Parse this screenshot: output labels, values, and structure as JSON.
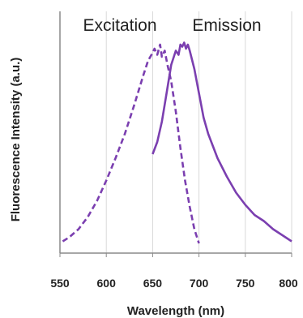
{
  "chart_data": {
    "type": "line",
    "title": "",
    "xlabel": "Wavelength (nm)",
    "ylabel": "Fluorescence Intensity (a.u.)",
    "xlim": [
      550,
      800
    ],
    "ylim": [
      0,
      1
    ],
    "x_ticks": [
      550,
      600,
      650,
      700,
      750,
      800
    ],
    "y_ticks_shown": false,
    "grid": "vertical",
    "legend": "none",
    "series": [
      {
        "name": "Excitation",
        "color": "#7b3fb0",
        "dash": "dashed",
        "x": [
          553,
          560,
          570,
          580,
          590,
          600,
          610,
          620,
          630,
          640,
          645,
          650,
          652,
          655,
          658,
          660,
          663,
          666,
          670,
          675,
          680,
          685,
          690,
          695,
          700
        ],
        "y": [
          0.01,
          0.03,
          0.07,
          0.13,
          0.21,
          0.31,
          0.42,
          0.54,
          0.68,
          0.83,
          0.9,
          0.94,
          0.96,
          0.93,
          0.98,
          0.92,
          0.95,
          0.88,
          0.8,
          0.65,
          0.47,
          0.31,
          0.18,
          0.07,
          0.0
        ]
      },
      {
        "name": "Emission",
        "color": "#7b3fb0",
        "dash": "solid",
        "x": [
          650,
          655,
          660,
          665,
          670,
          675,
          678,
          680,
          682,
          684,
          686,
          688,
          690,
          695,
          700,
          705,
          710,
          720,
          730,
          740,
          750,
          760,
          770,
          780,
          790,
          800
        ],
        "y": [
          0.44,
          0.5,
          0.6,
          0.74,
          0.88,
          0.95,
          0.93,
          0.98,
          0.97,
          0.99,
          0.96,
          0.98,
          0.95,
          0.86,
          0.74,
          0.62,
          0.54,
          0.42,
          0.33,
          0.25,
          0.19,
          0.14,
          0.11,
          0.07,
          0.04,
          0.01
        ]
      }
    ]
  }
}
